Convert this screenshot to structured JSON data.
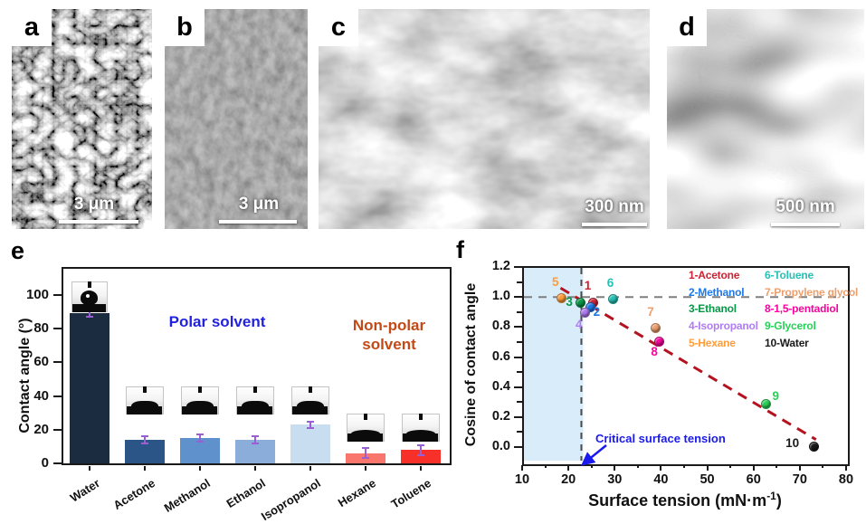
{
  "panels": [
    {
      "id": "a",
      "letter": "a",
      "scale_bar": "3 μm"
    },
    {
      "id": "b",
      "letter": "b",
      "scale_bar": "3 μm"
    },
    {
      "id": "c",
      "letter": "c",
      "scale_bar": "300 nm"
    },
    {
      "id": "d",
      "letter": "d",
      "scale_bar": "500 nm"
    }
  ],
  "chart_data": [
    {
      "panel": "e",
      "type": "bar",
      "ylabel": "Contact angle (°)",
      "ylim": [
        0,
        117
      ],
      "yticks": [
        0,
        20,
        40,
        60,
        80,
        100
      ],
      "categories": [
        "Water",
        "Acetone",
        "Methanol",
        "Ethanol",
        "Isopropanol",
        "Hexane",
        "Toluene"
      ],
      "values": [
        89,
        14,
        15,
        14,
        23,
        6,
        8
      ],
      "errors": [
        2,
        2,
        2,
        2,
        2,
        3,
        3
      ],
      "bar_colors": [
        "#1b2c41",
        "#2b5487",
        "#5f91cd",
        "#8aadd9",
        "#c9ddf1",
        "#f9766d",
        "#f8302a"
      ],
      "error_color": "#9a5fd2",
      "grid": false,
      "legend_position": "none",
      "annotations": [
        {
          "text": "Polar solvent",
          "color": "#2222dd"
        },
        {
          "text": "Non-polar solvent",
          "color": "#c34a16"
        }
      ],
      "droplet_insets": [
        "dome",
        "flat",
        "flat",
        "flat",
        "flat",
        "film",
        "film"
      ]
    },
    {
      "panel": "f",
      "type": "scatter",
      "xlabel": "Surface tension (mN·m⁻¹)",
      "xlabel_parts": [
        "Surface tension (mN·m",
        "-1",
        ")"
      ],
      "ylabel": "Cosine of contact angle",
      "xlim": [
        10,
        80
      ],
      "ylim": [
        -0.11,
        1.2
      ],
      "xticks": [
        10,
        20,
        30,
        40,
        50,
        60,
        70,
        80
      ],
      "yticks": [
        0,
        0.2,
        0.4,
        0.6,
        0.8,
        1,
        1.2
      ],
      "grid": false,
      "points": [
        {
          "n": "1",
          "name": "Acetone",
          "x": 25.2,
          "y": 0.97,
          "color": "#cc2233",
          "label_offset": [
            -9,
            -24
          ]
        },
        {
          "n": "2",
          "name": "Methanol",
          "x": 24.6,
          "y": 0.94,
          "color": "#1e78e6",
          "label_offset": [
            4,
            0
          ]
        },
        {
          "n": "3",
          "name": "Ethanol",
          "x": 22.4,
          "y": 0.97,
          "color": "#0a9648",
          "label_offset": [
            -15,
            -6
          ]
        },
        {
          "n": "4",
          "name": "Isopropanol",
          "x": 23.3,
          "y": 0.9,
          "color": "#b07cf2",
          "label_offset": [
            -9,
            7
          ]
        },
        {
          "n": "5",
          "name": "Hexane",
          "x": 18.4,
          "y": 1.0,
          "color": "#ff9d3a",
          "label_offset": [
            -10,
            -23
          ]
        },
        {
          "n": "6",
          "name": "Toluene",
          "x": 29.5,
          "y": 0.99,
          "color": "#27c0b4",
          "label_offset": [
            -6,
            -24
          ]
        },
        {
          "n": "7",
          "name": "Propylene glycol",
          "x": 38.6,
          "y": 0.8,
          "color": "#eda06e",
          "label_offset": [
            -8,
            -23
          ]
        },
        {
          "n": "8",
          "name": "1,5-pentadiol",
          "x": 39.4,
          "y": 0.71,
          "color": "#f6059c",
          "label_offset": [
            -8,
            6
          ]
        },
        {
          "n": "9",
          "name": "Glycerol",
          "x": 62.5,
          "y": 0.29,
          "color": "#28d157",
          "label_offset": [
            8,
            -15
          ]
        },
        {
          "n": "10",
          "name": "Water",
          "x": 72.8,
          "y": 0.01,
          "color": "#1a1a1a",
          "label_offset": [
            -30,
            -9
          ]
        }
      ],
      "legend": {
        "position": "top-right",
        "columns": [
          [
            {
              "text": "1-Acetone",
              "color": "#cc2233"
            },
            {
              "text": "2-Methanol",
              "color": "#1e78e6"
            },
            {
              "text": "3-Ethanol",
              "color": "#0a9648"
            },
            {
              "text": "4-Isopropanol",
              "color": "#b07cf2"
            },
            {
              "text": "5-Hexane",
              "color": "#ff9d3a"
            }
          ],
          [
            {
              "text": "6-Toluene",
              "color": "#27c0b4"
            },
            {
              "text": "7-Propylene glycol",
              "color": "#eda06e"
            },
            {
              "text": "8-1,5-pentadiol",
              "color": "#f6059c"
            },
            {
              "text": "9-Glycerol",
              "color": "#28d157"
            },
            {
              "text": "10-Water",
              "color": "#1a1a1a"
            }
          ]
        ]
      },
      "reference_lines": {
        "horizontal": {
          "y": 1.0,
          "style": "dashed",
          "color": "#7f7f7f"
        },
        "vertical": {
          "x": 22.8,
          "style": "dashed",
          "color": "#4a4a4a"
        },
        "trend": {
          "from": [
            18.3,
            1.06
          ],
          "to": [
            73.5,
            0.05
          ],
          "style": "dashed",
          "color": "#b5121f"
        }
      },
      "shaded_region": {
        "x_range": [
          10,
          22.8
        ],
        "color": "#d9ecfa"
      },
      "critical_annotation": {
        "text": "Critical surface tension",
        "color": "#1a1aee"
      }
    }
  ]
}
